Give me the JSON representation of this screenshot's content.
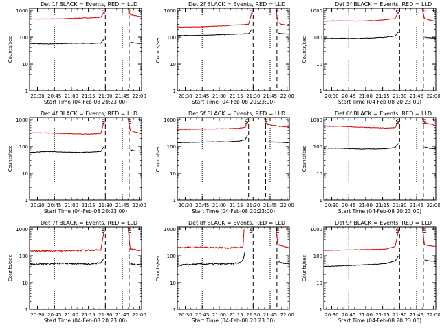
{
  "figure": {
    "ylabel": "Counts/sec",
    "xlabel": "Start Time (04-Feb-08 20:23:00)",
    "xticks": [
      "20:30",
      "20:45",
      "21:00",
      "21:15",
      "21:30",
      "21:45",
      "22:00"
    ],
    "yticks": [
      "1000",
      "100",
      "10",
      "1"
    ],
    "marker_s": "S",
    "marker_e": "E",
    "colors": {
      "events": "#000000",
      "lld": "#dd0000",
      "axes": "#000000"
    }
  },
  "chart_data": [
    {
      "type": "line",
      "title": "Det 1f BLACK = Events, RED = LLD",
      "x_unit": "minutes since 20:23",
      "xlim": [
        0,
        99
      ],
      "ylim": [
        1,
        1200
      ],
      "log_y": true,
      "dotted_lines": [
        22,
        82
      ],
      "dashed_lines": [
        67,
        88
      ],
      "series": [
        {
          "color": "#dd0000",
          "points": [
            [
              0,
              480
            ],
            [
              15,
              480
            ],
            [
              30,
              490
            ],
            [
              45,
              520
            ],
            [
              55,
              530
            ],
            [
              63,
              560
            ],
            [
              66,
              900
            ]
          ]
        },
        {
          "color": "#dd0000",
          "points": [
            [
              87,
              1100
            ],
            [
              89,
              700
            ],
            [
              92,
              650
            ],
            [
              96,
              600
            ],
            [
              99,
              590
            ]
          ]
        },
        {
          "color": "#000000",
          "points": [
            [
              0,
              58
            ],
            [
              15,
              56
            ],
            [
              30,
              58
            ],
            [
              45,
              60
            ],
            [
              55,
              58
            ],
            [
              63,
              60
            ],
            [
              66,
              85
            ]
          ]
        },
        {
          "color": "#000000",
          "points": [
            [
              89,
              65
            ],
            [
              93,
              60
            ],
            [
              99,
              58
            ]
          ]
        }
      ]
    },
    {
      "type": "line",
      "title": "Det 2f BLACK = Events, RED = LLD",
      "x_unit": "minutes since 20:23",
      "xlim": [
        0,
        99
      ],
      "ylim": [
        1,
        1200
      ],
      "log_y": true,
      "dotted_lines": [
        22,
        82
      ],
      "dashed_lines": [
        67,
        88
      ],
      "series": [
        {
          "color": "#dd0000",
          "points": [
            [
              0,
              240
            ],
            [
              15,
              240
            ],
            [
              30,
              250
            ],
            [
              45,
              270
            ],
            [
              55,
              290
            ],
            [
              63,
              300
            ],
            [
              66,
              900
            ]
          ]
        },
        {
          "color": "#dd0000",
          "points": [
            [
              87,
              1100
            ],
            [
              89,
              350
            ],
            [
              92,
              300
            ],
            [
              96,
              280
            ],
            [
              99,
              260
            ]
          ]
        },
        {
          "color": "#000000",
          "points": [
            [
              0,
              115
            ],
            [
              15,
              115
            ],
            [
              30,
              120
            ],
            [
              45,
              125
            ],
            [
              55,
              130
            ],
            [
              63,
              135
            ],
            [
              66,
              200
            ]
          ]
        },
        {
          "color": "#000000",
          "points": [
            [
              89,
              140
            ],
            [
              93,
              135
            ],
            [
              99,
              125
            ]
          ]
        }
      ]
    },
    {
      "type": "line",
      "title": "Det 3f BLACK = Events, RED = LLD",
      "x_unit": "minutes since 20:23",
      "xlim": [
        0,
        99
      ],
      "ylim": [
        1,
        1200
      ],
      "log_y": true,
      "dotted_lines": [
        22,
        82
      ],
      "dashed_lines": [
        67,
        88
      ],
      "series": [
        {
          "color": "#dd0000",
          "points": [
            [
              0,
              400
            ],
            [
              15,
              410
            ],
            [
              30,
              400
            ],
            [
              45,
              420
            ],
            [
              55,
              450
            ],
            [
              63,
              500
            ],
            [
              66,
              900
            ]
          ]
        },
        {
          "color": "#dd0000",
          "points": [
            [
              87,
              1100
            ],
            [
              89,
              500
            ],
            [
              92,
              450
            ],
            [
              96,
              420
            ],
            [
              99,
              400
            ]
          ]
        },
        {
          "color": "#000000",
          "points": [
            [
              0,
              90
            ],
            [
              15,
              92
            ],
            [
              30,
              90
            ],
            [
              45,
              95
            ],
            [
              55,
              100
            ],
            [
              63,
              110
            ],
            [
              66,
              160
            ]
          ]
        },
        {
          "color": "#000000",
          "points": [
            [
              89,
              100
            ],
            [
              93,
              95
            ],
            [
              99,
              92
            ]
          ]
        }
      ]
    },
    {
      "type": "line",
      "title": "Det 4f BLACK = Events, RED = LLD",
      "x_unit": "minutes since 20:23",
      "xlim": [
        0,
        99
      ],
      "ylim": [
        1,
        1200
      ],
      "log_y": true,
      "dotted_lines": [
        22,
        82
      ],
      "dashed_lines": [
        67,
        88
      ],
      "series": [
        {
          "color": "#dd0000",
          "points": [
            [
              0,
              320
            ],
            [
              15,
              320
            ],
            [
              30,
              300
            ],
            [
              45,
              290
            ],
            [
              55,
              290
            ],
            [
              63,
              300
            ],
            [
              66,
              900
            ]
          ]
        },
        {
          "color": "#dd0000",
          "points": [
            [
              87,
              1100
            ],
            [
              89,
              400
            ],
            [
              92,
              350
            ],
            [
              96,
              320
            ],
            [
              99,
              300
            ]
          ]
        },
        {
          "color": "#000000",
          "points": [
            [
              0,
              60
            ],
            [
              15,
              65
            ],
            [
              30,
              62
            ],
            [
              45,
              60
            ],
            [
              55,
              62
            ],
            [
              63,
              65
            ],
            [
              66,
              100
            ]
          ]
        },
        {
          "color": "#000000",
          "points": [
            [
              89,
              75
            ],
            [
              93,
              70
            ],
            [
              99,
              68
            ]
          ]
        }
      ]
    },
    {
      "type": "line",
      "title": "Det 5f BLACK = Events, RED = LLD",
      "x_unit": "minutes since 20:23",
      "xlim": [
        0,
        99
      ],
      "ylim": [
        1,
        1200
      ],
      "log_y": true,
      "dotted_lines": [
        22,
        82
      ],
      "dashed_lines": [
        63,
        78
      ],
      "series": [
        {
          "color": "#dd0000",
          "points": [
            [
              0,
              430
            ],
            [
              15,
              440
            ],
            [
              30,
              450
            ],
            [
              45,
              460
            ],
            [
              55,
              480
            ],
            [
              60,
              520
            ],
            [
              62,
              900
            ]
          ]
        },
        {
          "color": "#dd0000",
          "points": [
            [
              77,
              1100
            ],
            [
              80,
              650
            ],
            [
              85,
              600
            ],
            [
              92,
              550
            ],
            [
              99,
              520
            ]
          ]
        },
        {
          "color": "#000000",
          "points": [
            [
              0,
              140
            ],
            [
              15,
              145
            ],
            [
              30,
              150
            ],
            [
              45,
              150
            ],
            [
              55,
              160
            ],
            [
              60,
              180
            ],
            [
              62,
              260
            ]
          ]
        },
        {
          "color": "#000000",
          "points": [
            [
              80,
              150
            ],
            [
              88,
              145
            ],
            [
              99,
              140
            ]
          ]
        }
      ]
    },
    {
      "type": "line",
      "title": "Det 6f BLACK = Events, RED = LLD",
      "x_unit": "minutes since 20:23",
      "xlim": [
        0,
        99
      ],
      "ylim": [
        1,
        1200
      ],
      "log_y": true,
      "dotted_lines": [
        22,
        82
      ],
      "dashed_lines": [
        67,
        88
      ],
      "series": [
        {
          "color": "#dd0000",
          "points": [
            [
              0,
              560
            ],
            [
              15,
              560
            ],
            [
              30,
              520
            ],
            [
              45,
              500
            ],
            [
              55,
              480
            ],
            [
              63,
              500
            ],
            [
              66,
              900
            ]
          ]
        },
        {
          "color": "#dd0000",
          "points": [
            [
              87,
              1100
            ],
            [
              89,
              800
            ],
            [
              92,
              700
            ],
            [
              96,
              650
            ],
            [
              99,
              600
            ]
          ]
        },
        {
          "color": "#000000",
          "points": [
            [
              0,
              85
            ],
            [
              15,
              85
            ],
            [
              30,
              80
            ],
            [
              45,
              80
            ],
            [
              55,
              82
            ],
            [
              63,
              90
            ],
            [
              66,
              130
            ]
          ]
        },
        {
          "color": "#000000",
          "points": [
            [
              89,
              95
            ],
            [
              93,
              85
            ],
            [
              99,
              80
            ]
          ]
        }
      ]
    },
    {
      "type": "line",
      "title": "Det 7f BLACK = Events, RED = LLD",
      "x_unit": "minutes since 20:23",
      "xlim": [
        0,
        99
      ],
      "ylim": [
        1,
        1200
      ],
      "log_y": true,
      "dotted_lines": [
        22,
        82
      ],
      "dashed_lines": [
        67,
        88
      ],
      "series": [
        {
          "color": "#dd0000",
          "points": [
            [
              0,
              150
            ],
            [
              15,
              155
            ],
            [
              30,
              155
            ],
            [
              45,
              160
            ],
            [
              55,
              165
            ],
            [
              63,
              170
            ],
            [
              66,
              900
            ]
          ]
        },
        {
          "color": "#dd0000",
          "points": [
            [
              87,
              1100
            ],
            [
              89,
              180
            ],
            [
              92,
              170
            ],
            [
              96,
              165
            ],
            [
              99,
              160
            ]
          ]
        },
        {
          "color": "#000000",
          "points": [
            [
              0,
              50
            ],
            [
              15,
              50
            ],
            [
              30,
              52
            ],
            [
              45,
              50
            ],
            [
              55,
              50
            ],
            [
              63,
              55
            ],
            [
              66,
              80
            ]
          ]
        },
        {
          "color": "#000000",
          "points": [
            [
              89,
              50
            ],
            [
              93,
              48
            ],
            [
              99,
              48
            ]
          ]
        }
      ]
    },
    {
      "type": "line",
      "title": "Det 8f BLACK = Events, RED = LLD",
      "x_unit": "minutes since 20:23",
      "xlim": [
        0,
        99
      ],
      "ylim": [
        1,
        1200
      ],
      "log_y": true,
      "dotted_lines": [
        22,
        82
      ],
      "dashed_lines": [
        67,
        88
      ],
      "series": [
        {
          "color": "#dd0000",
          "points": [
            [
              0,
              200
            ],
            [
              15,
              210
            ],
            [
              30,
              205
            ],
            [
              45,
              200
            ],
            [
              55,
              205
            ],
            [
              58,
              210
            ],
            [
              59,
              1000
            ]
          ]
        },
        {
          "color": "#dd0000",
          "points": [
            [
              87,
              1100
            ],
            [
              89,
              260
            ],
            [
              92,
              230
            ],
            [
              96,
              210
            ],
            [
              99,
              200
            ]
          ]
        },
        {
          "color": "#000000",
          "points": [
            [
              0,
              45
            ],
            [
              15,
              48
            ],
            [
              30,
              50
            ],
            [
              45,
              50
            ],
            [
              55,
              55
            ],
            [
              58,
              70
            ],
            [
              60,
              160
            ]
          ]
        },
        {
          "color": "#000000",
          "points": [
            [
              89,
              60
            ],
            [
              93,
              55
            ],
            [
              99,
              50
            ]
          ]
        }
      ]
    },
    {
      "type": "line",
      "title": "Det 9f BLACK = Events, RED = LLD",
      "x_unit": "minutes since 20:23",
      "xlim": [
        0,
        99
      ],
      "ylim": [
        1,
        1200
      ],
      "log_y": true,
      "dotted_lines": [
        22,
        82
      ],
      "dashed_lines": [
        67,
        88
      ],
      "series": [
        {
          "color": "#dd0000",
          "points": [
            [
              0,
              160
            ],
            [
              15,
              165
            ],
            [
              30,
              170
            ],
            [
              45,
              175
            ],
            [
              55,
              180
            ],
            [
              63,
              220
            ],
            [
              66,
              900
            ]
          ]
        },
        {
          "color": "#dd0000",
          "points": [
            [
              87,
              1100
            ],
            [
              89,
              260
            ],
            [
              92,
              240
            ],
            [
              96,
              230
            ],
            [
              99,
              220
            ]
          ]
        },
        {
          "color": "#000000",
          "points": [
            [
              0,
              40
            ],
            [
              15,
              42
            ],
            [
              30,
              45
            ],
            [
              45,
              48
            ],
            [
              55,
              52
            ],
            [
              63,
              65
            ],
            [
              66,
              100
            ]
          ]
        },
        {
          "color": "#000000",
          "points": [
            [
              89,
              70
            ],
            [
              93,
              65
            ],
            [
              99,
              62
            ]
          ]
        }
      ]
    }
  ]
}
